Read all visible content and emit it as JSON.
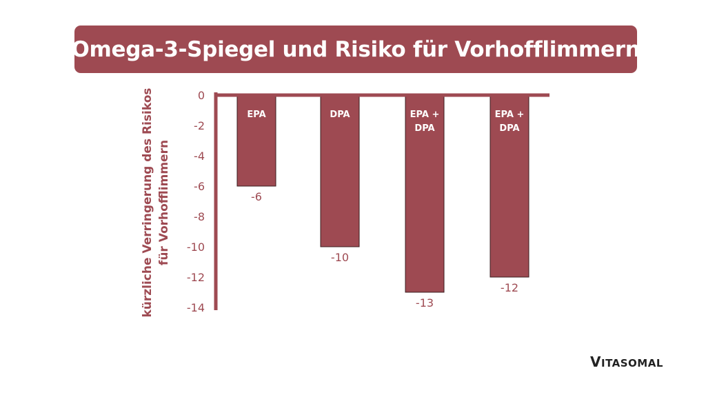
{
  "title": "Omega-3-Spiegel und Risiko für Vorhofflimmern",
  "brand": {
    "logo_text": "VITASOMAL",
    "logo_first": "V",
    "logo_rest": "ITASOMAL"
  },
  "colors": {
    "accent": "#9e4a52",
    "bar": "#9e4a52",
    "bar_label": "#ffffff",
    "tick_text": "#9e4a52"
  },
  "chart_data": {
    "type": "bar",
    "title": "Omega-3-Spiegel und Risiko für Vorhofflimmern",
    "xlabel": "",
    "ylabel": "kürzliche Verringerung des Risikos\nfür Vorhofflimmern",
    "categories": [
      "EPA",
      "DPA",
      "EPA +\nDPA",
      "EPA +\nDPA"
    ],
    "values": [
      -6,
      -10,
      -13,
      -12
    ],
    "value_labels": [
      "-6",
      "-10",
      "-13",
      "-12"
    ],
    "ylim": [
      -14,
      0
    ],
    "yticks": [
      0,
      -2,
      -4,
      -6,
      -8,
      -10,
      -12,
      -14
    ],
    "ytick_labels": [
      "0",
      "-2",
      "-4",
      "-6",
      "-8",
      "-10",
      "-12",
      "-14"
    ],
    "grid": false,
    "legend": "none"
  }
}
